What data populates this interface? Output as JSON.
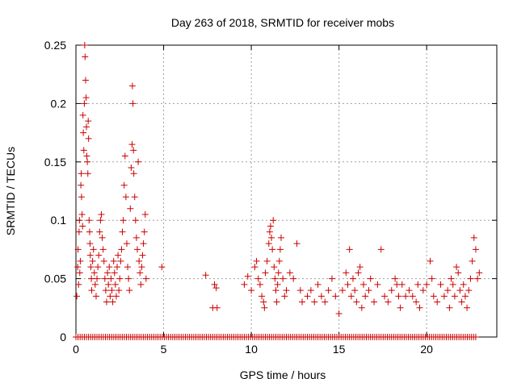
{
  "chart_data": {
    "type": "scatter",
    "title": "Day 263 of 2018, SRMTID for receiver mobs",
    "xlabel": "GPS time / hours",
    "ylabel": "SRMTID / TECUs",
    "xlim": [
      0,
      24
    ],
    "ylim": [
      0,
      0.25
    ],
    "xticks": [
      0,
      5,
      10,
      15,
      20
    ],
    "yticks": [
      0,
      0.05,
      0.1,
      0.15,
      0.2,
      0.25
    ],
    "xtick_labels": [
      "0",
      "5",
      "10",
      "15",
      "20"
    ],
    "ytick_labels": [
      "0",
      "0.05",
      "0.1",
      "0.15",
      "0.2",
      "0.25"
    ],
    "grid": true,
    "marker": "+",
    "color": "#cc0000",
    "series": [
      {
        "name": "SRMTID",
        "points": [
          [
            0.05,
            0.035
          ],
          [
            0.1,
            0.06
          ],
          [
            0.12,
            0.075
          ],
          [
            0.15,
            0.045
          ],
          [
            0.18,
            0.09
          ],
          [
            0.2,
            0.1
          ],
          [
            0.22,
            0.055
          ],
          [
            0.25,
            0.065
          ],
          [
            0.28,
            0.13
          ],
          [
            0.3,
            0.14
          ],
          [
            0.32,
            0.12
          ],
          [
            0.35,
            0.105
          ],
          [
            0.38,
            0.095
          ],
          [
            0.4,
            0.19
          ],
          [
            0.42,
            0.175
          ],
          [
            0.45,
            0.16
          ],
          [
            0.48,
            0.2
          ],
          [
            0.5,
            0.25
          ],
          [
            0.52,
            0.24
          ],
          [
            0.55,
            0.22
          ],
          [
            0.58,
            0.205
          ],
          [
            0.6,
            0.18
          ],
          [
            0.62,
            0.155
          ],
          [
            0.65,
            0.15
          ],
          [
            0.68,
            0.14
          ],
          [
            0.7,
            0.185
          ],
          [
            0.72,
            0.17
          ],
          [
            0.75,
            0.1
          ],
          [
            0.78,
            0.09
          ],
          [
            0.8,
            0.08
          ],
          [
            0.82,
            0.07
          ],
          [
            0.85,
            0.06
          ],
          [
            0.88,
            0.05
          ],
          [
            0.9,
            0.04
          ],
          [
            0.95,
            0.065
          ],
          [
            1.0,
            0.075
          ],
          [
            1.05,
            0.055
          ],
          [
            1.1,
            0.045
          ],
          [
            1.15,
            0.035
          ],
          [
            1.2,
            0.05
          ],
          [
            1.25,
            0.06
          ],
          [
            1.3,
            0.07
          ],
          [
            1.35,
            0.09
          ],
          [
            1.4,
            0.1
          ],
          [
            1.45,
            0.105
          ],
          [
            1.5,
            0.085
          ],
          [
            1.55,
            0.075
          ],
          [
            1.6,
            0.065
          ],
          [
            1.65,
            0.05
          ],
          [
            1.7,
            0.04
          ],
          [
            1.75,
            0.03
          ],
          [
            1.8,
            0.055
          ],
          [
            1.85,
            0.045
          ],
          [
            1.9,
            0.06
          ],
          [
            1.95,
            0.035
          ],
          [
            2.0,
            0.05
          ],
          [
            2.05,
            0.04
          ],
          [
            2.1,
            0.03
          ],
          [
            2.15,
            0.065
          ],
          [
            2.2,
            0.055
          ],
          [
            2.25,
            0.045
          ],
          [
            2.3,
            0.035
          ],
          [
            2.35,
            0.06
          ],
          [
            2.4,
            0.07
          ],
          [
            2.45,
            0.04
          ],
          [
            2.5,
            0.05
          ],
          [
            2.55,
            0.065
          ],
          [
            2.6,
            0.075
          ],
          [
            2.65,
            0.09
          ],
          [
            2.7,
            0.1
          ],
          [
            2.75,
            0.13
          ],
          [
            2.8,
            0.155
          ],
          [
            2.85,
            0.12
          ],
          [
            2.9,
            0.08
          ],
          [
            2.95,
            0.06
          ],
          [
            3.0,
            0.05
          ],
          [
            3.05,
            0.04
          ],
          [
            3.1,
            0.11
          ],
          [
            3.15,
            0.145
          ],
          [
            3.2,
            0.165
          ],
          [
            3.22,
            0.215
          ],
          [
            3.25,
            0.2
          ],
          [
            3.28,
            0.16
          ],
          [
            3.3,
            0.14
          ],
          [
            3.35,
            0.12
          ],
          [
            3.4,
            0.1
          ],
          [
            3.45,
            0.085
          ],
          [
            3.5,
            0.075
          ],
          [
            3.55,
            0.15
          ],
          [
            3.6,
            0.065
          ],
          [
            3.65,
            0.055
          ],
          [
            3.7,
            0.045
          ],
          [
            3.75,
            0.06
          ],
          [
            3.8,
            0.07
          ],
          [
            3.85,
            0.08
          ],
          [
            3.9,
            0.09
          ],
          [
            3.95,
            0.105
          ],
          [
            4.0,
            0.05
          ],
          [
            4.9,
            0.06
          ],
          [
            7.4,
            0.053
          ],
          [
            7.8,
            0.025
          ],
          [
            7.9,
            0.045
          ],
          [
            8.0,
            0.042
          ],
          [
            8.05,
            0.025
          ],
          [
            9.6,
            0.045
          ],
          [
            9.8,
            0.052
          ],
          [
            10.0,
            0.04
          ],
          [
            10.2,
            0.06
          ],
          [
            10.3,
            0.065
          ],
          [
            10.4,
            0.05
          ],
          [
            10.5,
            0.045
          ],
          [
            10.6,
            0.035
          ],
          [
            10.7,
            0.03
          ],
          [
            10.75,
            0.025
          ],
          [
            10.8,
            0.055
          ],
          [
            10.9,
            0.065
          ],
          [
            11.0,
            0.08
          ],
          [
            11.05,
            0.09
          ],
          [
            11.1,
            0.095
          ],
          [
            11.15,
            0.085
          ],
          [
            11.2,
            0.075
          ],
          [
            11.25,
            0.1
          ],
          [
            11.3,
            0.06
          ],
          [
            11.35,
            0.05
          ],
          [
            11.4,
            0.04
          ],
          [
            11.45,
            0.03
          ],
          [
            11.5,
            0.045
          ],
          [
            11.55,
            0.055
          ],
          [
            11.6,
            0.065
          ],
          [
            11.65,
            0.075
          ],
          [
            11.7,
            0.085
          ],
          [
            11.8,
            0.05
          ],
          [
            11.9,
            0.035
          ],
          [
            12.0,
            0.04
          ],
          [
            12.2,
            0.055
          ],
          [
            12.4,
            0.05
          ],
          [
            12.6,
            0.08
          ],
          [
            12.8,
            0.04
          ],
          [
            12.9,
            0.03
          ],
          [
            13.2,
            0.035
          ],
          [
            13.4,
            0.04
          ],
          [
            13.6,
            0.03
          ],
          [
            13.8,
            0.045
          ],
          [
            14.0,
            0.035
          ],
          [
            14.2,
            0.03
          ],
          [
            14.4,
            0.04
          ],
          [
            14.6,
            0.05
          ],
          [
            14.8,
            0.035
          ],
          [
            15.0,
            0.02
          ],
          [
            15.2,
            0.04
          ],
          [
            15.4,
            0.055
          ],
          [
            15.5,
            0.045
          ],
          [
            15.6,
            0.075
          ],
          [
            15.7,
            0.035
          ],
          [
            15.8,
            0.05
          ],
          [
            15.9,
            0.04
          ],
          [
            16.0,
            0.03
          ],
          [
            16.1,
            0.055
          ],
          [
            16.2,
            0.06
          ],
          [
            16.3,
            0.025
          ],
          [
            16.4,
            0.045
          ],
          [
            16.5,
            0.035
          ],
          [
            16.7,
            0.04
          ],
          [
            16.8,
            0.05
          ],
          [
            17.0,
            0.03
          ],
          [
            17.2,
            0.045
          ],
          [
            17.4,
            0.075
          ],
          [
            17.6,
            0.035
          ],
          [
            17.8,
            0.03
          ],
          [
            18.0,
            0.04
          ],
          [
            18.2,
            0.05
          ],
          [
            18.3,
            0.045
          ],
          [
            18.4,
            0.035
          ],
          [
            18.5,
            0.025
          ],
          [
            18.6,
            0.045
          ],
          [
            18.8,
            0.035
          ],
          [
            19.0,
            0.04
          ],
          [
            19.2,
            0.035
          ],
          [
            19.4,
            0.03
          ],
          [
            19.5,
            0.045
          ],
          [
            19.6,
            0.025
          ],
          [
            19.8,
            0.04
          ],
          [
            20.0,
            0.045
          ],
          [
            20.2,
            0.065
          ],
          [
            20.3,
            0.05
          ],
          [
            20.4,
            0.035
          ],
          [
            20.6,
            0.03
          ],
          [
            20.8,
            0.045
          ],
          [
            21.0,
            0.035
          ],
          [
            21.2,
            0.04
          ],
          [
            21.3,
            0.025
          ],
          [
            21.4,
            0.05
          ],
          [
            21.5,
            0.045
          ],
          [
            21.6,
            0.035
          ],
          [
            21.7,
            0.06
          ],
          [
            21.8,
            0.055
          ],
          [
            21.9,
            0.04
          ],
          [
            22.0,
            0.03
          ],
          [
            22.1,
            0.045
          ],
          [
            22.2,
            0.035
          ],
          [
            22.3,
            0.025
          ],
          [
            22.4,
            0.04
          ],
          [
            22.5,
            0.05
          ],
          [
            22.6,
            0.065
          ],
          [
            22.7,
            0.085
          ],
          [
            22.8,
            0.075
          ],
          [
            22.9,
            0.05
          ],
          [
            23.0,
            0.055
          ]
        ]
      }
    ]
  }
}
